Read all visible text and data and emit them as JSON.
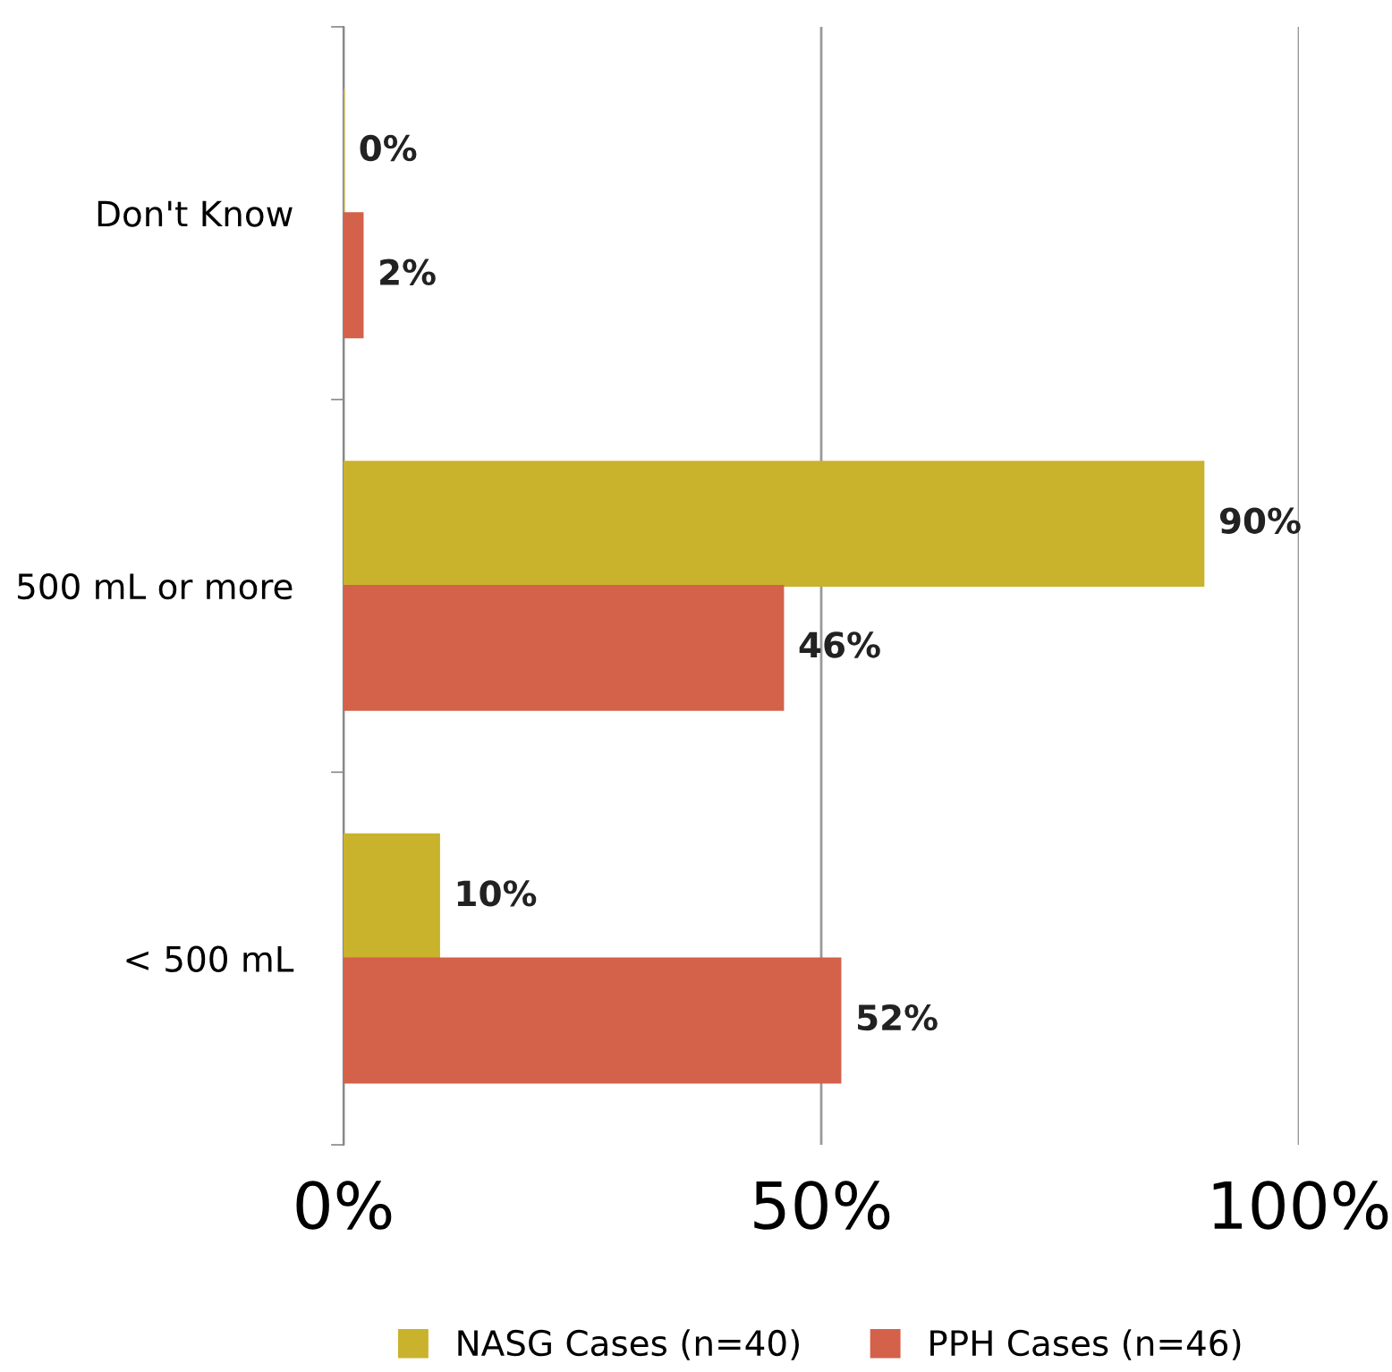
{
  "chart_data": {
    "type": "bar",
    "orientation": "horizontal",
    "categories": [
      "Don't Know",
      "500 mL or more",
      "< 500 mL"
    ],
    "series": [
      {
        "name": "NASG Cases (n=40)",
        "color": "#c9b22c",
        "values": [
          0,
          90,
          10
        ],
        "value_labels": [
          "0%",
          "90%",
          "10%"
        ]
      },
      {
        "name": "PPH Cases (n=46)",
        "color": "#d4614a",
        "values": [
          2,
          46,
          52
        ],
        "value_labels": [
          "2%",
          "46%",
          "52%"
        ]
      }
    ],
    "xlim": [
      0,
      100
    ],
    "xticks": [
      {
        "value": 0,
        "label": "0%"
      },
      {
        "value": 50,
        "label": "50%"
      },
      {
        "value": 100,
        "label": "100%"
      }
    ],
    "grid": "x",
    "legend": "bottom"
  }
}
